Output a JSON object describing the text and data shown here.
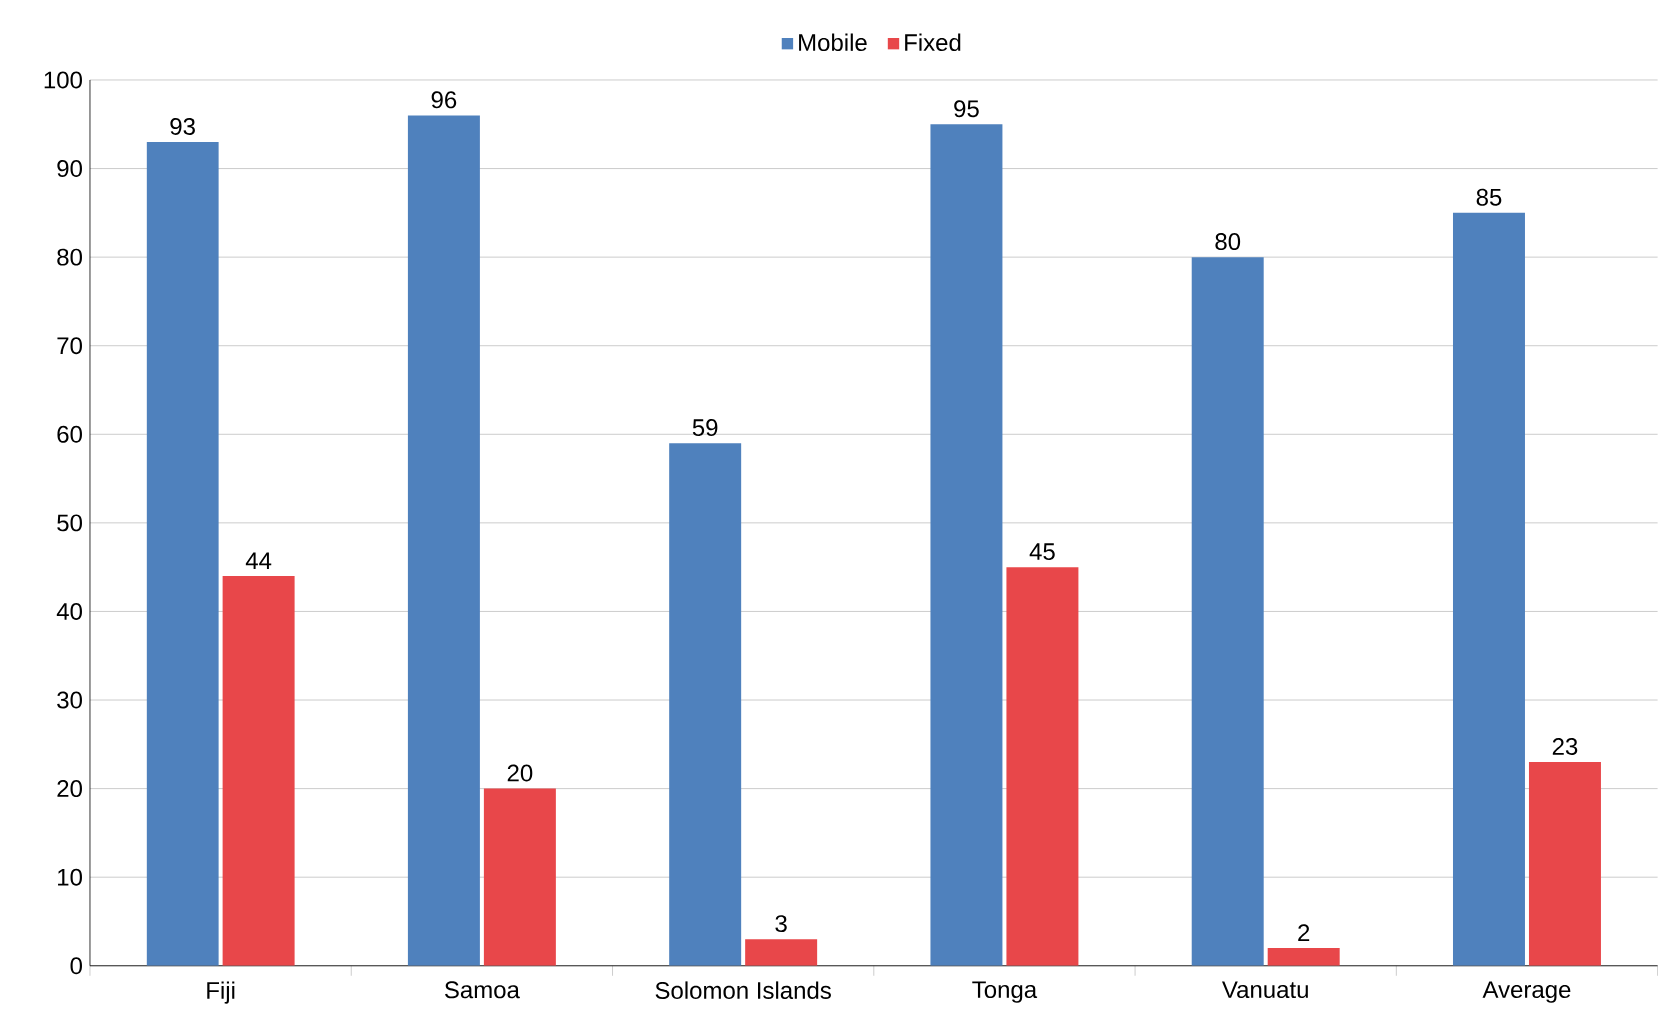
{
  "chart_data": {
    "type": "bar",
    "categories": [
      "Fiji",
      "Samoa",
      "Solomon Islands",
      "Tonga",
      "Vanuatu",
      "Average"
    ],
    "series": [
      {
        "name": "Mobile",
        "color": "#4f81bd",
        "values": [
          93,
          96,
          59,
          95,
          80,
          85
        ]
      },
      {
        "name": "Fixed",
        "color": "#e8474a",
        "values": [
          44,
          20,
          3,
          45,
          2,
          23
        ]
      }
    ],
    "ylim": [
      0,
      100
    ],
    "yticks": [
      0,
      10,
      20,
      30,
      40,
      50,
      60,
      70,
      80,
      90,
      100
    ],
    "grid": "y",
    "legend": "top",
    "data_labels": true
  }
}
